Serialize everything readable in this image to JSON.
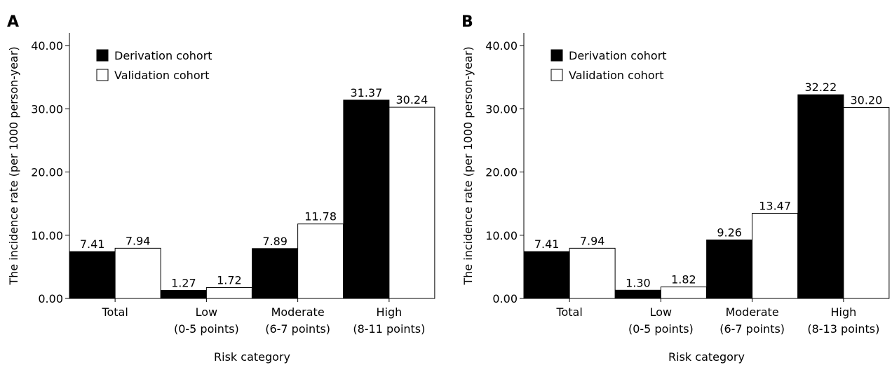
{
  "chart_data": [
    {
      "type": "bar",
      "panel_label": "A",
      "ylabel": "The incidence rate (per 1000 person-year)",
      "xlabel": "Risk category",
      "ylim": [
        0,
        40
      ],
      "yticks": [
        "0.00",
        "10.00",
        "20.00",
        "30.00",
        "40.00"
      ],
      "categories": [
        [
          "Total"
        ],
        [
          "Low",
          "(0-5 points)"
        ],
        [
          "Moderate",
          "(6-7 points)"
        ],
        [
          "High",
          "(8-11 points)"
        ]
      ],
      "series": [
        {
          "name": "Derivation cohort",
          "color": "#000000",
          "values": [
            7.41,
            1.27,
            7.89,
            31.37
          ],
          "labels": [
            "7.41",
            "1.27",
            "7.89",
            "31.37"
          ]
        },
        {
          "name": "Validation cohort",
          "color": "#ffffff",
          "values": [
            7.94,
            1.72,
            11.78,
            30.24
          ],
          "labels": [
            "7.94",
            "1.72",
            "11.78",
            "30.24"
          ]
        }
      ],
      "legend_position": "top-left",
      "grid": false
    },
    {
      "type": "bar",
      "panel_label": "B",
      "ylabel": "The incidence rate (per 1000 person-year)",
      "xlabel": "Risk category",
      "ylim": [
        0,
        40
      ],
      "yticks": [
        "0.00",
        "10.00",
        "20.00",
        "30.00",
        "40.00"
      ],
      "categories": [
        [
          "Total"
        ],
        [
          "Low",
          "(0-5 points)"
        ],
        [
          "Moderate",
          "(6-7 points)"
        ],
        [
          "High",
          "(8-13 points)"
        ]
      ],
      "series": [
        {
          "name": "Derivation cohort",
          "color": "#000000",
          "values": [
            7.41,
            1.3,
            9.26,
            32.22
          ],
          "labels": [
            "7.41",
            "1.30",
            "9.26",
            "32.22"
          ]
        },
        {
          "name": "Validation cohort",
          "color": "#ffffff",
          "values": [
            7.94,
            1.82,
            13.47,
            30.2
          ],
          "labels": [
            "7.94",
            "1.82",
            "13.47",
            "30.20"
          ]
        }
      ],
      "legend_position": "top-left",
      "grid": false
    }
  ]
}
